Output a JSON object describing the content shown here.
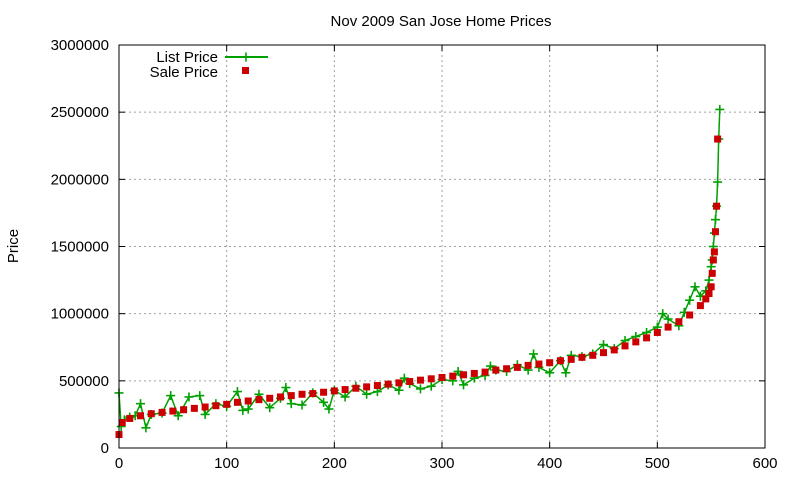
{
  "chart_data": {
    "type": "scatter",
    "title": "Nov 2009 San Jose Home Prices",
    "xlabel": "",
    "ylabel": "Price",
    "xlim": [
      0,
      600
    ],
    "ylim": [
      0,
      3000000
    ],
    "x_ticks": [
      0,
      100,
      200,
      300,
      400,
      500,
      600
    ],
    "y_ticks": [
      0,
      500000,
      1000000,
      1500000,
      2000000,
      2500000,
      3000000
    ],
    "grid": true,
    "legend": "top-left",
    "colors": {
      "list": "#00a000",
      "sale": "#cc0000"
    },
    "series": [
      {
        "name": "List Price",
        "marker": "plus",
        "line": true,
        "points": [
          [
            0,
            410000
          ],
          [
            2,
            160000
          ],
          [
            5,
            210000
          ],
          [
            10,
            230000
          ],
          [
            15,
            240000
          ],
          [
            20,
            330000
          ],
          [
            25,
            150000
          ],
          [
            30,
            250000
          ],
          [
            40,
            260000
          ],
          [
            48,
            390000
          ],
          [
            55,
            240000
          ],
          [
            65,
            380000
          ],
          [
            75,
            390000
          ],
          [
            80,
            250000
          ],
          [
            90,
            330000
          ],
          [
            100,
            310000
          ],
          [
            110,
            420000
          ],
          [
            115,
            280000
          ],
          [
            120,
            290000
          ],
          [
            130,
            400000
          ],
          [
            140,
            300000
          ],
          [
            150,
            370000
          ],
          [
            155,
            450000
          ],
          [
            160,
            330000
          ],
          [
            170,
            320000
          ],
          [
            180,
            410000
          ],
          [
            190,
            340000
          ],
          [
            195,
            290000
          ],
          [
            200,
            430000
          ],
          [
            210,
            380000
          ],
          [
            220,
            460000
          ],
          [
            230,
            400000
          ],
          [
            240,
            420000
          ],
          [
            250,
            470000
          ],
          [
            260,
            430000
          ],
          [
            265,
            520000
          ],
          [
            270,
            480000
          ],
          [
            280,
            440000
          ],
          [
            290,
            460000
          ],
          [
            300,
            510000
          ],
          [
            310,
            500000
          ],
          [
            315,
            570000
          ],
          [
            320,
            470000
          ],
          [
            330,
            520000
          ],
          [
            340,
            540000
          ],
          [
            345,
            610000
          ],
          [
            350,
            580000
          ],
          [
            360,
            570000
          ],
          [
            370,
            620000
          ],
          [
            380,
            580000
          ],
          [
            385,
            700000
          ],
          [
            390,
            600000
          ],
          [
            400,
            560000
          ],
          [
            410,
            650000
          ],
          [
            415,
            560000
          ],
          [
            420,
            690000
          ],
          [
            430,
            680000
          ],
          [
            440,
            700000
          ],
          [
            450,
            770000
          ],
          [
            460,
            740000
          ],
          [
            470,
            800000
          ],
          [
            480,
            830000
          ],
          [
            490,
            860000
          ],
          [
            500,
            900000
          ],
          [
            505,
            1000000
          ],
          [
            510,
            960000
          ],
          [
            520,
            910000
          ],
          [
            525,
            1010000
          ],
          [
            530,
            1100000
          ],
          [
            535,
            1200000
          ],
          [
            540,
            1130000
          ],
          [
            545,
            1170000
          ],
          [
            548,
            1250000
          ],
          [
            550,
            1350000
          ],
          [
            551,
            1400000
          ],
          [
            552,
            1500000
          ],
          [
            553,
            1600000
          ],
          [
            554,
            1700000
          ],
          [
            555,
            1800000
          ],
          [
            556,
            1980000
          ],
          [
            557,
            2300000
          ],
          [
            558,
            2520000
          ]
        ]
      },
      {
        "name": "Sale Price",
        "marker": "square",
        "line": false,
        "points": [
          [
            0,
            100000
          ],
          [
            3,
            190000
          ],
          [
            10,
            220000
          ],
          [
            20,
            240000
          ],
          [
            30,
            255000
          ],
          [
            40,
            265000
          ],
          [
            50,
            275000
          ],
          [
            60,
            285000
          ],
          [
            70,
            295000
          ],
          [
            80,
            305000
          ],
          [
            90,
            315000
          ],
          [
            100,
            325000
          ],
          [
            110,
            340000
          ],
          [
            120,
            350000
          ],
          [
            130,
            360000
          ],
          [
            140,
            370000
          ],
          [
            150,
            380000
          ],
          [
            160,
            390000
          ],
          [
            170,
            400000
          ],
          [
            180,
            405000
          ],
          [
            190,
            415000
          ],
          [
            200,
            425000
          ],
          [
            210,
            435000
          ],
          [
            220,
            445000
          ],
          [
            230,
            455000
          ],
          [
            240,
            465000
          ],
          [
            250,
            475000
          ],
          [
            260,
            485000
          ],
          [
            270,
            495000
          ],
          [
            280,
            505000
          ],
          [
            290,
            515000
          ],
          [
            300,
            525000
          ],
          [
            310,
            535000
          ],
          [
            320,
            545000
          ],
          [
            330,
            555000
          ],
          [
            340,
            565000
          ],
          [
            350,
            580000
          ],
          [
            360,
            590000
          ],
          [
            370,
            600000
          ],
          [
            380,
            615000
          ],
          [
            390,
            625000
          ],
          [
            400,
            635000
          ],
          [
            410,
            650000
          ],
          [
            420,
            660000
          ],
          [
            430,
            675000
          ],
          [
            440,
            690000
          ],
          [
            450,
            710000
          ],
          [
            460,
            730000
          ],
          [
            470,
            760000
          ],
          [
            480,
            790000
          ],
          [
            490,
            820000
          ],
          [
            500,
            860000
          ],
          [
            510,
            900000
          ],
          [
            520,
            940000
          ],
          [
            530,
            990000
          ],
          [
            540,
            1060000
          ],
          [
            545,
            1110000
          ],
          [
            548,
            1150000
          ],
          [
            550,
            1200000
          ],
          [
            551,
            1300000
          ],
          [
            552,
            1400000
          ],
          [
            553,
            1460000
          ],
          [
            554,
            1610000
          ],
          [
            555,
            1800000
          ],
          [
            556,
            2300000
          ]
        ]
      }
    ]
  }
}
